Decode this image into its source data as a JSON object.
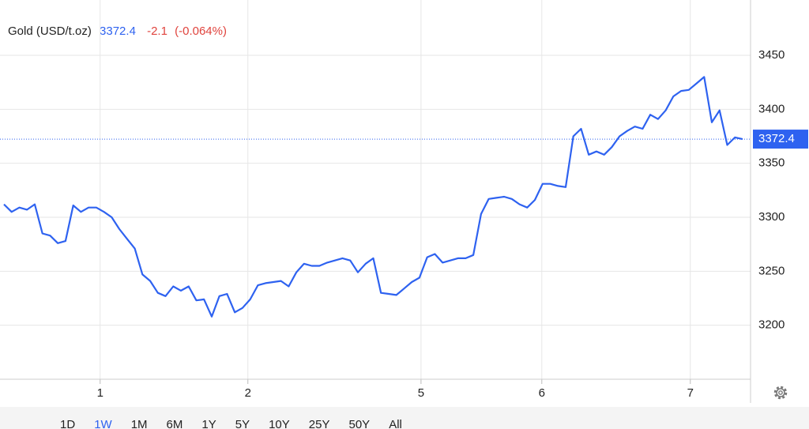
{
  "chart_data": {
    "type": "line",
    "title": "Gold (USD/t.oz)",
    "last_price": 3372.4,
    "change": "-2.1",
    "change_percent": "(-0.064%)",
    "series": [
      {
        "name": "Gold (USD/t.oz)",
        "color": "#2e62f0",
        "values": [
          3312,
          3305,
          3309,
          3307,
          3312,
          3285,
          3283,
          3276,
          3278,
          3311,
          3305,
          3309,
          3309,
          3305,
          3300,
          3289,
          3280,
          3271,
          3247,
          3241,
          3230,
          3227,
          3236,
          3232,
          3236,
          3223,
          3224,
          3208,
          3227,
          3229,
          3212,
          3216,
          3224,
          3237,
          3239,
          3240,
          3241,
          3236,
          3249,
          3257,
          3255,
          3255,
          3258,
          3260,
          3262,
          3260,
          3249,
          3257,
          3262,
          3230,
          3229,
          3228,
          3234,
          3240,
          3244,
          3263,
          3266,
          3258,
          3260,
          3262,
          3262,
          3265,
          3303,
          3317,
          3318,
          3319,
          3317,
          3312,
          3309,
          3316,
          3331,
          3331,
          3329,
          3328,
          3375,
          3382,
          3358,
          3361,
          3358,
          3365,
          3375,
          3380,
          3384,
          3382,
          3395,
          3391,
          3399,
          3412,
          3417,
          3418,
          3424,
          3430,
          3388,
          3399,
          3367,
          3374,
          3372.4
        ]
      }
    ],
    "xlim": [
      0,
      96
    ],
    "xticks": [
      {
        "value": 12.5,
        "label": "1"
      },
      {
        "value": 31.7,
        "label": "2"
      },
      {
        "value": 54.2,
        "label": "5"
      },
      {
        "value": 69.9,
        "label": "6"
      },
      {
        "value": 89.2,
        "label": "7"
      }
    ],
    "ylim": [
      3150,
      3500
    ],
    "yticks": [
      3200,
      3250,
      3300,
      3350,
      3400,
      3450
    ],
    "grid": true,
    "ranges": [
      "1D",
      "1W",
      "1M",
      "6M",
      "1Y",
      "5Y",
      "10Y",
      "25Y",
      "50Y",
      "All"
    ],
    "selected_range": "1W"
  }
}
